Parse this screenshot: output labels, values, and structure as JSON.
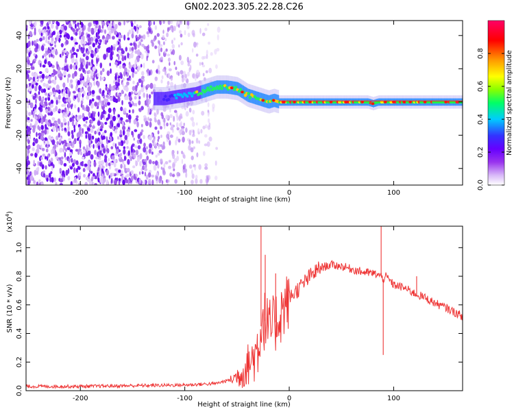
{
  "figure_title": "GN02.2023.305.22.28.C26",
  "chart_data": [
    {
      "type": "heatmap",
      "title": "",
      "xlabel": "Height of straight line (km)",
      "ylabel": "Frequency (Hz)",
      "xlim": [
        -252,
        166
      ],
      "ylim": [
        -50,
        49
      ],
      "x_ticks": [
        -200,
        -100,
        0,
        100
      ],
      "y_ticks": [
        -40,
        -20,
        0,
        20,
        40
      ],
      "colorbar": {
        "label": "Normalized spectral amplitude",
        "range": [
          0,
          1
        ],
        "ticks": [
          0.0,
          0.2,
          0.4,
          0.6,
          0.8
        ],
        "colormap": [
          "#ffffff",
          "#d8b8f8",
          "#9933ee",
          "#6600ff",
          "#3333ff",
          "#00ccff",
          "#00ff66",
          "#88ff00",
          "#ffff00",
          "#ff9900",
          "#ff0000",
          "#ff0066"
        ]
      },
      "ridge": {
        "x": [
          -120,
          -100,
          -90,
          -80,
          -70,
          -60,
          -50,
          -40,
          -35,
          -30,
          -25,
          -20,
          -15,
          -10,
          0,
          20,
          40,
          60,
          75,
          80,
          85,
          100,
          120,
          140,
          166
        ],
        "y": [
          2,
          4,
          5,
          7,
          9,
          9,
          8,
          4,
          3,
          2,
          1,
          0,
          1,
          0,
          0,
          0,
          0,
          0,
          0,
          -1,
          0,
          0,
          0,
          0,
          0
        ]
      }
    },
    {
      "type": "line",
      "title": "",
      "xlabel": "Height of straight line (km)",
      "ylabel": "SNR (10 * v/v)",
      "y_scale_label": "(x10",
      "y_scale_exp": "4",
      "y_scale_close": ")",
      "xlim": [
        -252,
        166
      ],
      "ylim": [
        0,
        1.15
      ],
      "x_ticks": [
        -200,
        -100,
        0,
        100
      ],
      "y_ticks": [
        0.0,
        0.2,
        0.4,
        0.6,
        0.8,
        1.0
      ],
      "color": "#ee3333",
      "series": [
        {
          "x": [
            -252,
            -200,
            -150,
            -100,
            -70,
            -55,
            -45,
            -40,
            -35,
            -30,
            -27,
            -25,
            -22,
            -20,
            -15,
            -10,
            -5,
            0,
            10,
            20,
            30,
            40,
            50,
            60,
            70,
            80,
            85,
            88,
            90,
            92,
            95,
            100,
            110,
            120,
            130,
            140,
            150,
            166
          ],
          "y": [
            0.03,
            0.03,
            0.035,
            0.04,
            0.05,
            0.08,
            0.12,
            0.18,
            0.22,
            0.3,
            0.45,
            0.5,
            0.48,
            0.42,
            0.45,
            0.52,
            0.58,
            0.65,
            0.72,
            0.8,
            0.86,
            0.88,
            0.87,
            0.85,
            0.83,
            0.82,
            0.81,
            0.8,
            0.78,
            0.8,
            0.78,
            0.74,
            0.72,
            0.68,
            0.65,
            0.61,
            0.58,
            0.52
          ]
        }
      ],
      "spikes": [
        {
          "x": -27,
          "y": 1.15
        },
        {
          "x": -23,
          "y": 0.95
        },
        {
          "x": -13,
          "y": 0.82
        },
        {
          "x": 88,
          "y": 1.15
        },
        {
          "x": 90,
          "y": 0.25
        },
        {
          "x": 122,
          "y": 0.8
        }
      ]
    }
  ]
}
